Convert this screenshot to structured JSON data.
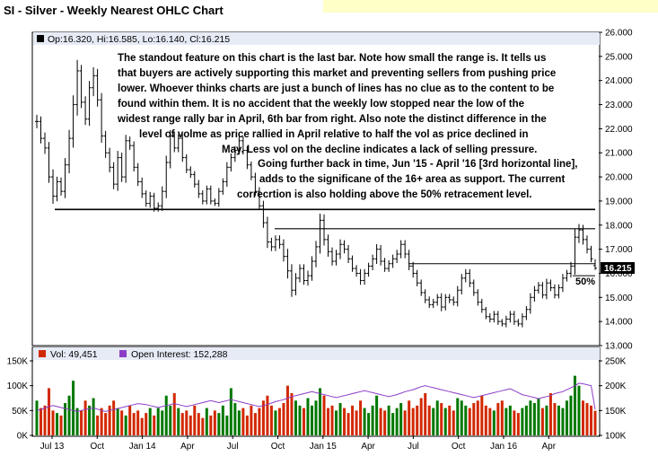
{
  "title": "SI - Silver - Weekly Nearest OHLC Chart",
  "price_panel": {
    "ohlc_info": "Op:16.320, Hi:16.585, Lo:16.140, Cl:16.215",
    "last_price_tag": "16.215",
    "fifty_pct_label": "50%",
    "annotation_lines": [
      "The standout feature on this chart is the last bar.  Note how small the range is.  It tells us",
      "that buyers are actively supporting this market and preventing sellers from pushing price",
      "lower.  Whoever thinks charts are just a bunch of lines has no clue as to the content to be",
      "found within them.  It is no accident that the weekly low stopped near the low of the",
      "widest range rally bar in April, 6th bar from right.  Also note the distinct difference in the",
      "level of volme as price rallied in April relative to half the vol as price declined in",
      "May.  Less vol on the decline indicates a lack of selling pressure.",
      "Going further back in time, Jun '15 - April '16 [3rd horizontal line],",
      "adds to the significane of the 16+ area as support.  The current",
      "correcrtion is also holding above the 50% retracement level."
    ]
  },
  "volume_panel": {
    "vol_label": "Vol: 49,451",
    "oi_label": "Open Interest: 152,288",
    "colors": {
      "up": "#007800",
      "down": "#d22800",
      "oi": "#8c3cc8"
    }
  },
  "chart_data": [
    {
      "type": "ohlc",
      "title": "SI - Silver - Weekly Nearest OHLC Chart",
      "x_tick_labels": [
        "Jul 13",
        "Oct",
        "Jan 14",
        "Apr",
        "Jul",
        "Oct",
        "Jan 15",
        "Apr",
        "Jul",
        "Oct",
        "Jan 16",
        "Apr"
      ],
      "y_tick_labels": [
        "26.000",
        "25.000",
        "24.000",
        "23.000",
        "22.000",
        "21.000",
        "20.000",
        "19.000",
        "18.000",
        "17.000",
        "16.000",
        "15.000",
        "14.000",
        "13.000"
      ],
      "ylim": [
        13.0,
        26.0
      ],
      "scale": "linear",
      "grid": false,
      "last_bar": {
        "open": 16.32,
        "high": 16.585,
        "low": 16.14,
        "close": 16.215
      },
      "horizontal_lines": [
        18.65,
        17.85,
        16.4,
        15.9
      ],
      "closes": [
        22.3,
        21.6,
        21.2,
        20.0,
        19.2,
        19.8,
        19.4,
        20.5,
        21.6,
        23.0,
        24.4,
        23.1,
        22.4,
        23.7,
        24.2,
        23.2,
        21.7,
        21.0,
        20.4,
        19.7,
        20.8,
        20.0,
        21.5,
        21.3,
        20.4,
        19.8,
        19.3,
        18.9,
        19.2,
        18.7,
        18.8,
        19.4,
        20.6,
        21.7,
        21.2,
        21.6,
        20.8,
        20.3,
        20.1,
        19.7,
        19.3,
        19.0,
        19.5,
        19.0,
        18.9,
        19.4,
        19.8,
        20.4,
        20.8,
        21.1,
        21.5,
        21.1,
        20.5,
        20.0,
        19.4,
        18.8,
        18.1,
        17.3,
        17.1,
        17.4,
        17.2,
        16.7,
        16.1,
        15.3,
        15.8,
        16.2,
        15.7,
        15.9,
        16.5,
        17.1,
        18.2,
        17.4,
        16.9,
        16.5,
        16.8,
        17.2,
        17.0,
        16.6,
        16.2,
        16.0,
        15.7,
        16.0,
        16.3,
        16.6,
        17.0,
        16.5,
        16.2,
        16.4,
        16.6,
        16.8,
        17.2,
        16.8,
        16.3,
        16.0,
        15.6,
        15.2,
        14.9,
        14.7,
        14.8,
        15.0,
        14.6,
        15.0,
        14.9,
        14.8,
        15.3,
        15.8,
        16.0,
        15.6,
        15.2,
        14.8,
        14.5,
        14.2,
        14.1,
        14.3,
        14.0,
        13.9,
        14.1,
        14.3,
        14.0,
        13.9,
        14.2,
        14.5,
        15.0,
        15.3,
        15.5,
        15.1,
        15.6,
        15.4,
        15.1,
        15.4,
        15.8,
        16.0,
        16.3,
        17.5,
        17.8,
        17.4,
        17.0,
        16.6,
        16.215
      ],
      "ranges": [
        0.8,
        0.6,
        0.7,
        0.7,
        0.9,
        0.6,
        0.5,
        0.8,
        1.0,
        1.1,
        1.3,
        0.7,
        0.7,
        0.8,
        1.0,
        0.8,
        0.8,
        0.6,
        0.6,
        0.6,
        0.8,
        0.6,
        0.7,
        0.5,
        0.5,
        0.5,
        0.5,
        0.4,
        0.5,
        0.4,
        0.4,
        0.6,
        0.8,
        0.7,
        0.5,
        0.5,
        0.5,
        0.4,
        0.4,
        0.4,
        0.5,
        0.4,
        0.4,
        0.4,
        0.3,
        0.4,
        0.4,
        0.6,
        0.5,
        0.5,
        0.5,
        0.5,
        0.5,
        0.4,
        0.5,
        0.5,
        0.6,
        0.7,
        0.5,
        0.5,
        0.5,
        0.6,
        0.9,
        0.8,
        0.6,
        0.5,
        0.5,
        0.6,
        0.6,
        0.7,
        0.8,
        0.7,
        0.6,
        0.5,
        0.5,
        0.6,
        0.5,
        0.5,
        0.4,
        0.4,
        0.5,
        0.5,
        0.4,
        0.5,
        0.6,
        0.5,
        0.4,
        0.4,
        0.5,
        0.5,
        0.5,
        0.5,
        0.5,
        0.5,
        0.4,
        0.4,
        0.4,
        0.4,
        0.4,
        0.4,
        0.5,
        0.4,
        0.4,
        0.4,
        0.5,
        0.5,
        0.5,
        0.5,
        0.4,
        0.4,
        0.4,
        0.3,
        0.4,
        0.4,
        0.4,
        0.3,
        0.4,
        0.4,
        0.4,
        0.3,
        0.4,
        0.4,
        0.5,
        0.5,
        0.4,
        0.4,
        0.5,
        0.4,
        0.4,
        0.4,
        0.5,
        0.4,
        0.5,
        1.0,
        0.7,
        0.6,
        0.5,
        0.4,
        0.445
      ],
      "vol_ylim_k": [
        0,
        150
      ],
      "vol_y_tick_labels": [
        "150K",
        "100K",
        "50K",
        "0K"
      ],
      "oi_ylim_k": [
        100,
        250
      ],
      "oi_y_tick_labels": [
        "250K",
        "200K",
        "150K",
        "100K"
      ],
      "volume_k": [
        70,
        55,
        60,
        95,
        50,
        45,
        40,
        65,
        80,
        110,
        55,
        50,
        70,
        60,
        75,
        40,
        55,
        45,
        60,
        70,
        55,
        50,
        40,
        60,
        45,
        50,
        35,
        45,
        55,
        40,
        55,
        50,
        80,
        60,
        85,
        55,
        45,
        50,
        40,
        60,
        45,
        35,
        55,
        40,
        50,
        45,
        60,
        40,
        95,
        65,
        50,
        55,
        40,
        60,
        45,
        55,
        70,
        80,
        60,
        50,
        55,
        65,
        100,
        85,
        70,
        60,
        55,
        75,
        60,
        70,
        95,
        80,
        55,
        60,
        50,
        65,
        55,
        45,
        60,
        50,
        70,
        55,
        45,
        60,
        80,
        55,
        50,
        60,
        45,
        55,
        65,
        50,
        70,
        55,
        60,
        75,
        85,
        60,
        55,
        70,
        65,
        55,
        60,
        50,
        75,
        70,
        60,
        55,
        65,
        70,
        80,
        60,
        55,
        50,
        65,
        70,
        55,
        60,
        50,
        45,
        55,
        60,
        70,
        65,
        75,
        55,
        60,
        85,
        65,
        60,
        55,
        70,
        80,
        120,
        100,
        70,
        65,
        60,
        49.451
      ],
      "open_interest_k": [
        150,
        152,
        155,
        158,
        160,
        158,
        156,
        154,
        152,
        150,
        148,
        150,
        152,
        154,
        155,
        153,
        150,
        148,
        150,
        152,
        154,
        156,
        158,
        160,
        162,
        164,
        163,
        162,
        160,
        158,
        156,
        158,
        160,
        162,
        164,
        162,
        160,
        158,
        160,
        162,
        164,
        166,
        168,
        170,
        168,
        166,
        168,
        170,
        172,
        170,
        168,
        166,
        164,
        162,
        160,
        158,
        160,
        162,
        165,
        168,
        170,
        172,
        175,
        178,
        180,
        182,
        184,
        186,
        188,
        186,
        184,
        182,
        180,
        178,
        176,
        178,
        180,
        182,
        184,
        186,
        188,
        190,
        188,
        186,
        184,
        182,
        180,
        178,
        180,
        182,
        185,
        188,
        190,
        192,
        195,
        198,
        200,
        198,
        196,
        194,
        192,
        190,
        188,
        186,
        184,
        182,
        180,
        178,
        176,
        178,
        180,
        182,
        184,
        186,
        188,
        190,
        192,
        194,
        190,
        186,
        182,
        180,
        178,
        176,
        174,
        176,
        178,
        180,
        184,
        186,
        188,
        192,
        196,
        200,
        205,
        204,
        202,
        200,
        152.288
      ]
    }
  ]
}
